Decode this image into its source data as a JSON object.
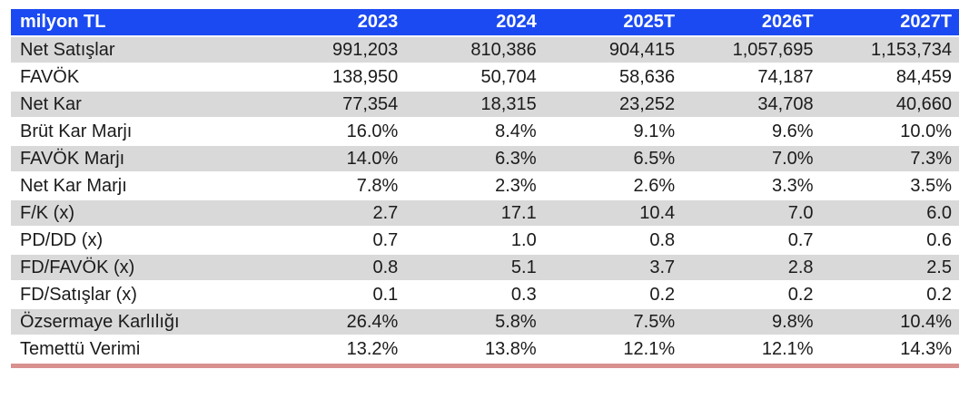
{
  "chart_data": {
    "type": "table",
    "unit_label": "milyon TL",
    "columns": [
      "2023",
      "2024",
      "2025T",
      "2026T",
      "2027T"
    ],
    "rows": [
      {
        "label": "Net Satışlar",
        "values": [
          "991,203",
          "810,386",
          "904,415",
          "1,057,695",
          "1,153,734"
        ]
      },
      {
        "label": "FAVÖK",
        "values": [
          "138,950",
          "50,704",
          "58,636",
          "74,187",
          "84,459"
        ]
      },
      {
        "label": "Net Kar",
        "values": [
          "77,354",
          "18,315",
          "23,252",
          "34,708",
          "40,660"
        ]
      },
      {
        "label": "Brüt Kar Marjı",
        "values": [
          "16.0%",
          "8.4%",
          "9.1%",
          "9.6%",
          "10.0%"
        ]
      },
      {
        "label": "FAVÖK Marjı",
        "values": [
          "14.0%",
          "6.3%",
          "6.5%",
          "7.0%",
          "7.3%"
        ]
      },
      {
        "label": "Net Kar Marjı",
        "values": [
          "7.8%",
          "2.3%",
          "2.6%",
          "3.3%",
          "3.5%"
        ]
      },
      {
        "label": "F/K (x)",
        "values": [
          "2.7",
          "17.1",
          "10.4",
          "7.0",
          "6.0"
        ]
      },
      {
        "label": "PD/DD (x)",
        "values": [
          "0.7",
          "1.0",
          "0.8",
          "0.7",
          "0.6"
        ]
      },
      {
        "label": "FD/FAVÖK (x)",
        "values": [
          "0.8",
          "5.1",
          "3.7",
          "2.8",
          "2.5"
        ]
      },
      {
        "label": "FD/Satışlar (x)",
        "values": [
          "0.1",
          "0.3",
          "0.2",
          "0.2",
          "0.2"
        ]
      },
      {
        "label": "Özsermaye Karlılığı",
        "values": [
          "26.4%",
          "5.8%",
          "7.5%",
          "9.8%",
          "10.4%"
        ]
      },
      {
        "label": "Temettü Verimi",
        "values": [
          "13.2%",
          "13.8%",
          "12.1%",
          "12.1%",
          "14.3%"
        ]
      }
    ]
  },
  "colors": {
    "header_bg": "#1b4af2",
    "header_text": "#ffffff",
    "row_alt_bg": "#d9d9d9",
    "row_bg": "#ffffff",
    "text": "#1b1b1b",
    "bottom_rule": "#d9918f"
  }
}
